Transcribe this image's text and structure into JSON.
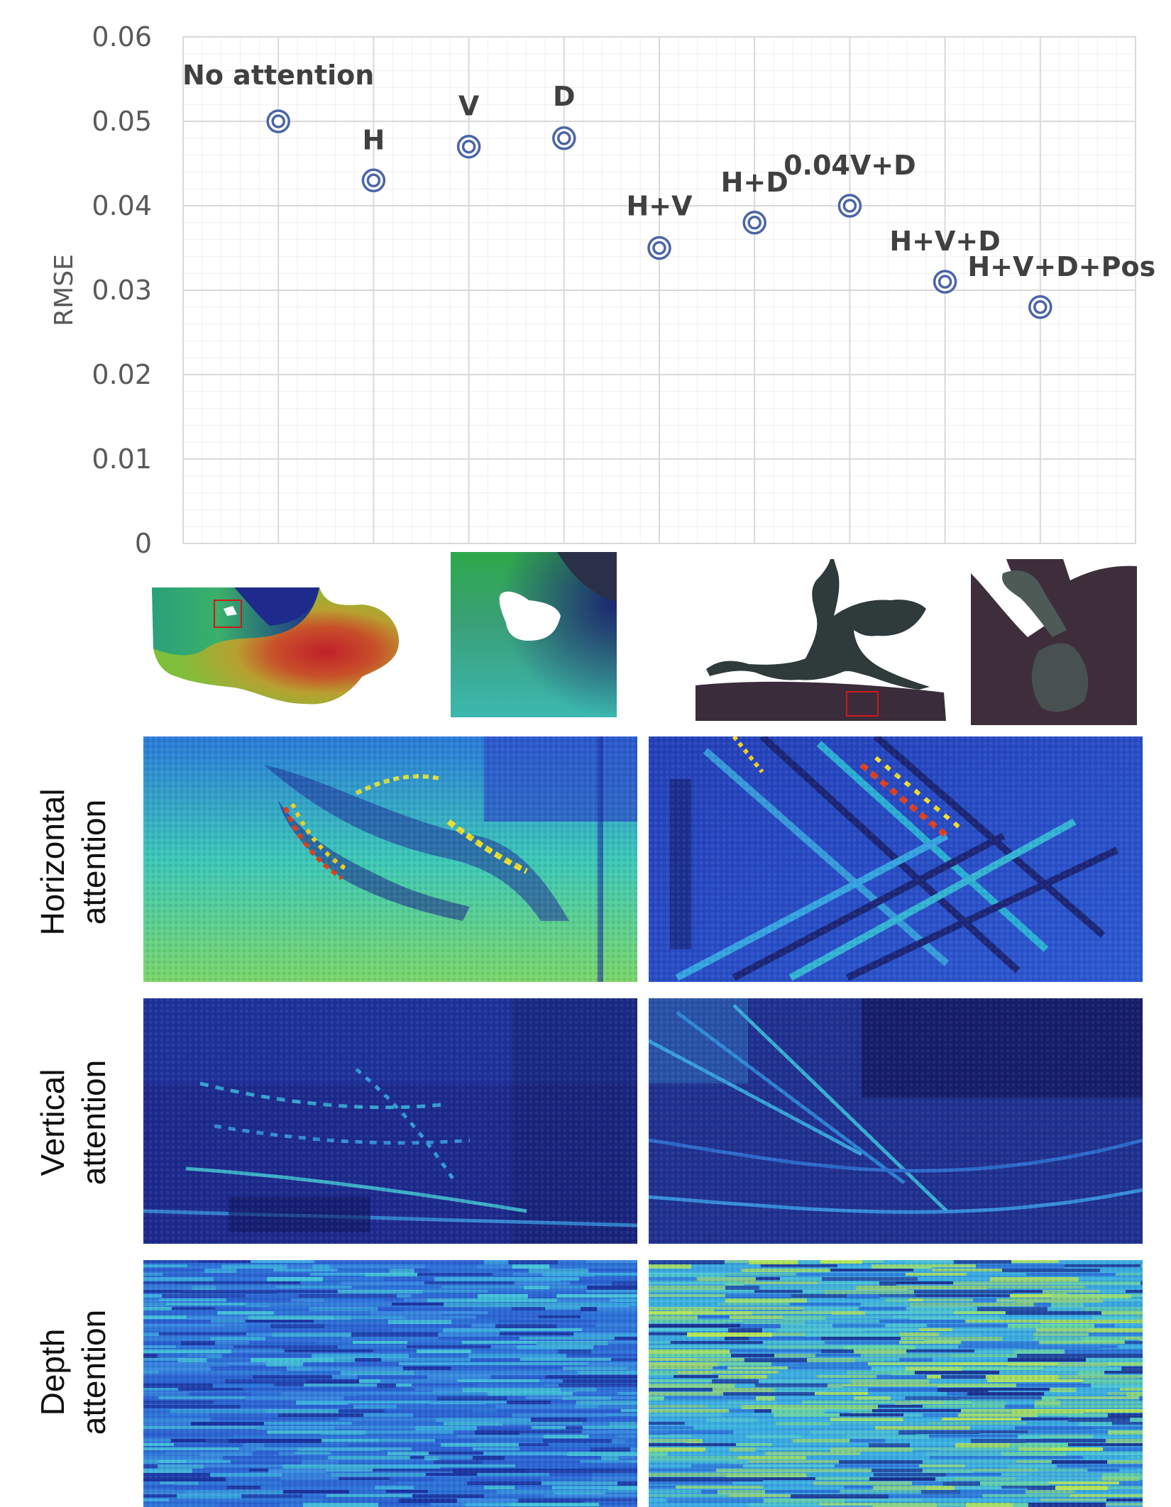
{
  "chart_data": {
    "type": "scatter",
    "title": "",
    "xlabel": "",
    "ylabel": "RMSE",
    "ylim": [
      0,
      0.06
    ],
    "yticks": [
      "0",
      "0.01",
      "0.02",
      "0.03",
      "0.04",
      "0.05",
      "0.06"
    ],
    "xlim": [
      0,
      10
    ],
    "grid": true,
    "series": [
      {
        "name": "RMSE",
        "points": [
          {
            "label": "No attention",
            "x": 1,
            "y": 0.05
          },
          {
            "label": "H",
            "x": 2,
            "y": 0.043
          },
          {
            "label": "V",
            "x": 3,
            "y": 0.047
          },
          {
            "label": "D",
            "x": 4,
            "y": 0.048
          },
          {
            "label": "H+V",
            "x": 5,
            "y": 0.035
          },
          {
            "label": "H+D",
            "x": 6,
            "y": 0.038
          },
          {
            "label": "0.04V+D",
            "x": 7,
            "y": 0.04
          },
          {
            "label": "H+V+D",
            "x": 8,
            "y": 0.031
          },
          {
            "label": "H+V+D+Pos",
            "x": 9,
            "y": 0.028
          }
        ]
      }
    ]
  },
  "figure": {
    "rows": [
      {
        "line1": "Horizontal",
        "line2": "attention"
      },
      {
        "line1": "Vertical",
        "line2": "attention"
      },
      {
        "line1": "Depth",
        "line2": "attention"
      }
    ]
  },
  "colors": {
    "marker": "#4a64a6",
    "grid": "#d9d9d9",
    "text": "#404040"
  }
}
